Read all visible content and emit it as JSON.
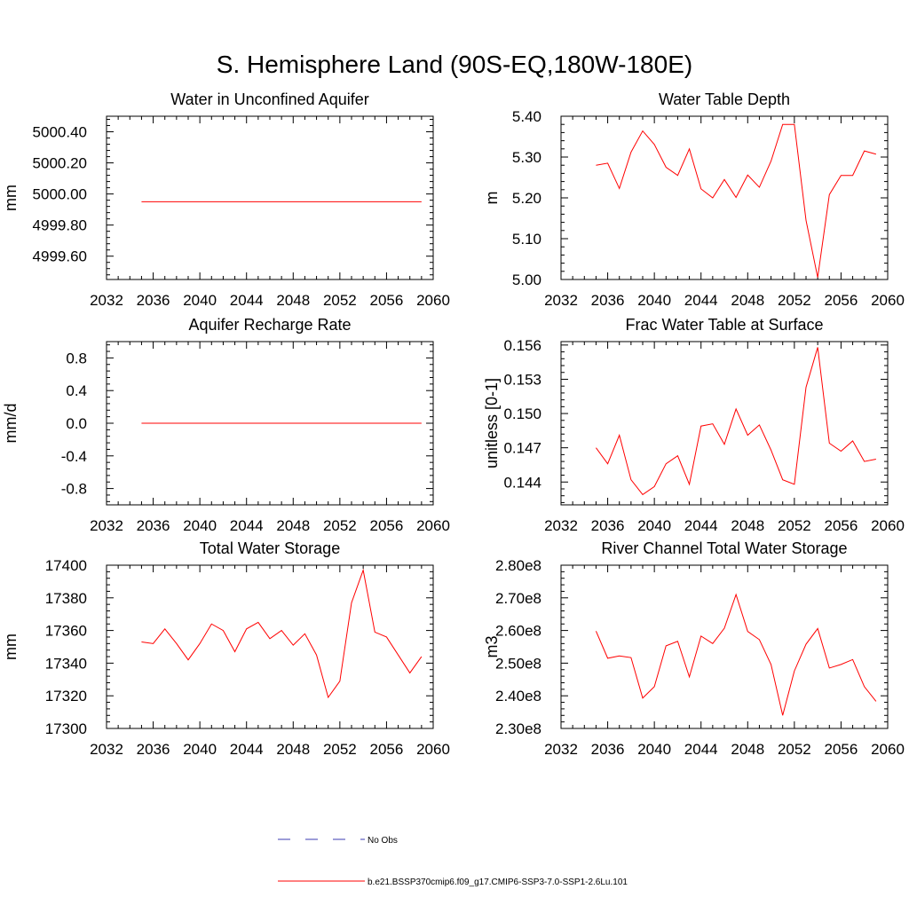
{
  "page": {
    "title": "S. Hemisphere Land (90S-EQ,180W-180E)"
  },
  "colors": {
    "model": "#ff0000",
    "obs": "#3b3bb0",
    "axis": "#000000"
  },
  "legend": {
    "placement": "bottom-center",
    "items": [
      {
        "label": "No Obs",
        "style": "dashed",
        "color": "#3b3bb0"
      },
      {
        "label": "b.e21.BSSP370cmip6.f09_g17.CMIP6-SSP3-7.0-SSP1-2.6Lu.101",
        "style": "solid",
        "color": "#ff0000"
      }
    ]
  },
  "chart_data": [
    {
      "type": "line",
      "title": "Water in Unconfined Aquifer",
      "ylabel": "mm",
      "xlim": [
        2032,
        2060
      ],
      "xticks": [
        2032,
        2036,
        2040,
        2044,
        2048,
        2052,
        2056,
        2060
      ],
      "ylim": [
        4999.45,
        5000.5
      ],
      "yticks": [
        4999.6,
        4999.8,
        5000.0,
        5000.2,
        5000.4
      ],
      "ytick_labels": [
        "4999.60",
        "4999.80",
        "5000.00",
        "5000.20",
        "5000.40"
      ],
      "series": [
        {
          "x": [
            2035,
            2036,
            2037,
            2038,
            2039,
            2040,
            2041,
            2042,
            2043,
            2044,
            2045,
            2046,
            2047,
            2048,
            2049,
            2050,
            2051,
            2052,
            2053,
            2054,
            2055,
            2056,
            2057,
            2058,
            2059
          ],
          "values": [
            4999.95,
            4999.95,
            4999.95,
            4999.95,
            4999.95,
            4999.95,
            4999.95,
            4999.95,
            4999.95,
            4999.95,
            4999.95,
            4999.95,
            4999.95,
            4999.95,
            4999.95,
            4999.95,
            4999.95,
            4999.95,
            4999.95,
            4999.95,
            4999.95,
            4999.95,
            4999.95,
            4999.95,
            4999.95
          ]
        }
      ]
    },
    {
      "type": "line",
      "title": "Water Table Depth",
      "ylabel": "m",
      "xlim": [
        2032,
        2060
      ],
      "xticks": [
        2032,
        2036,
        2040,
        2044,
        2048,
        2052,
        2056,
        2060
      ],
      "ylim": [
        5.0,
        5.4
      ],
      "yticks": [
        5.0,
        5.1,
        5.2,
        5.3,
        5.4
      ],
      "ytick_labels": [
        "5.00",
        "5.10",
        "5.20",
        "5.30",
        "5.40"
      ],
      "series": [
        {
          "x": [
            2035,
            2036,
            2037,
            2038,
            2039,
            2040,
            2041,
            2042,
            2043,
            2044,
            2045,
            2046,
            2047,
            2048,
            2049,
            2050,
            2051,
            2052,
            2053,
            2054,
            2055,
            2056,
            2057,
            2058,
            2059
          ],
          "values": [
            5.28,
            5.285,
            5.223,
            5.312,
            5.364,
            5.331,
            5.275,
            5.255,
            5.32,
            5.222,
            5.2,
            5.245,
            5.201,
            5.256,
            5.226,
            5.29,
            5.38,
            5.38,
            5.145,
            5.005,
            5.208,
            5.255,
            5.255,
            5.315,
            5.307
          ]
        }
      ]
    },
    {
      "type": "line",
      "title": "Aquifer Recharge Rate",
      "ylabel": "mm/d",
      "xlim": [
        2032,
        2060
      ],
      "xticks": [
        2032,
        2036,
        2040,
        2044,
        2048,
        2052,
        2056,
        2060
      ],
      "ylim": [
        -1.0,
        1.0
      ],
      "yticks": [
        -0.8,
        -0.4,
        0.0,
        0.4,
        0.8
      ],
      "ytick_labels": [
        "-0.8",
        "-0.4",
        "0.0",
        "0.4",
        "0.8"
      ],
      "series": [
        {
          "x": [
            2035,
            2036,
            2037,
            2038,
            2039,
            2040,
            2041,
            2042,
            2043,
            2044,
            2045,
            2046,
            2047,
            2048,
            2049,
            2050,
            2051,
            2052,
            2053,
            2054,
            2055,
            2056,
            2057,
            2058,
            2059
          ],
          "values": [
            0,
            0,
            0,
            0,
            0,
            0,
            0,
            0,
            0,
            0,
            0,
            0,
            0,
            0,
            0,
            0,
            0,
            0,
            0,
            0,
            0,
            0,
            0,
            0,
            0
          ]
        }
      ]
    },
    {
      "type": "line",
      "title": "Frac Water Table at Surface",
      "ylabel": "unitless [0-1]",
      "xlim": [
        2032,
        2060
      ],
      "xticks": [
        2032,
        2036,
        2040,
        2044,
        2048,
        2052,
        2056,
        2060
      ],
      "ylim": [
        0.142,
        0.1563
      ],
      "yticks": [
        0.144,
        0.147,
        0.15,
        0.153,
        0.156
      ],
      "ytick_labels": [
        "0.144",
        "0.147",
        "0.150",
        "0.153",
        "0.156"
      ],
      "series": [
        {
          "x": [
            2035,
            2036,
            2037,
            2038,
            2039,
            2040,
            2041,
            2042,
            2043,
            2044,
            2045,
            2046,
            2047,
            2048,
            2049,
            2050,
            2051,
            2052,
            2053,
            2054,
            2055,
            2056,
            2057,
            2058,
            2059
          ],
          "values": [
            0.147,
            0.1456,
            0.1481,
            0.1442,
            0.1429,
            0.1436,
            0.1456,
            0.1463,
            0.1438,
            0.1489,
            0.1491,
            0.1473,
            0.1504,
            0.1481,
            0.149,
            0.1468,
            0.1442,
            0.1438,
            0.1523,
            0.1558,
            0.1474,
            0.1467,
            0.1476,
            0.1458,
            0.146
          ]
        }
      ]
    },
    {
      "type": "line",
      "title": "Total Water Storage",
      "ylabel": "mm",
      "xlim": [
        2032,
        2060
      ],
      "xticks": [
        2032,
        2036,
        2040,
        2044,
        2048,
        2052,
        2056,
        2060
      ],
      "ylim": [
        17300,
        17400
      ],
      "yticks": [
        17300,
        17320,
        17340,
        17360,
        17380,
        17400
      ],
      "ytick_labels": [
        "17300",
        "17320",
        "17340",
        "17360",
        "17380",
        "17400"
      ],
      "series": [
        {
          "x": [
            2035,
            2036,
            2037,
            2038,
            2039,
            2040,
            2041,
            2042,
            2043,
            2044,
            2045,
            2046,
            2047,
            2048,
            2049,
            2050,
            2051,
            2052,
            2053,
            2054,
            2055,
            2056,
            2057,
            2058,
            2059
          ],
          "values": [
            17353,
            17352,
            17361,
            17352,
            17342,
            17352,
            17364,
            17360,
            17347,
            17361,
            17365,
            17355,
            17360,
            17351,
            17358,
            17345,
            17319,
            17329,
            17377,
            17397,
            17359,
            17356,
            17345,
            17334,
            17344
          ]
        }
      ]
    },
    {
      "type": "line",
      "title": "River Channel Total Water Storage",
      "ylabel": "m3",
      "xlim": [
        2032,
        2060
      ],
      "xticks": [
        2032,
        2036,
        2040,
        2044,
        2048,
        2052,
        2056,
        2060
      ],
      "ylim": [
        230000000.0,
        280000000.0
      ],
      "yticks": [
        230000000.0,
        240000000.0,
        250000000.0,
        260000000.0,
        270000000.0,
        280000000.0
      ],
      "ytick_labels": [
        "2.30e8",
        "2.40e8",
        "2.50e8",
        "2.60e8",
        "2.70e8",
        "2.80e8"
      ],
      "series": [
        {
          "x": [
            2035,
            2036,
            2037,
            2038,
            2039,
            2040,
            2041,
            2042,
            2043,
            2044,
            2045,
            2046,
            2047,
            2048,
            2049,
            2050,
            2051,
            2052,
            2053,
            2054,
            2055,
            2056,
            2057,
            2058,
            2059
          ],
          "values": [
            259800000.0,
            251500000.0,
            252200000.0,
            251700000.0,
            239300000.0,
            242800000.0,
            255300000.0,
            256700000.0,
            245800000.0,
            258300000.0,
            256000000.0,
            260700000.0,
            271000000.0,
            259700000.0,
            257200000.0,
            249600000.0,
            234000000.0,
            247600000.0,
            255800000.0,
            260600000.0,
            248500000.0,
            249600000.0,
            251100000.0,
            242800000.0,
            238300000.0
          ]
        }
      ]
    }
  ]
}
